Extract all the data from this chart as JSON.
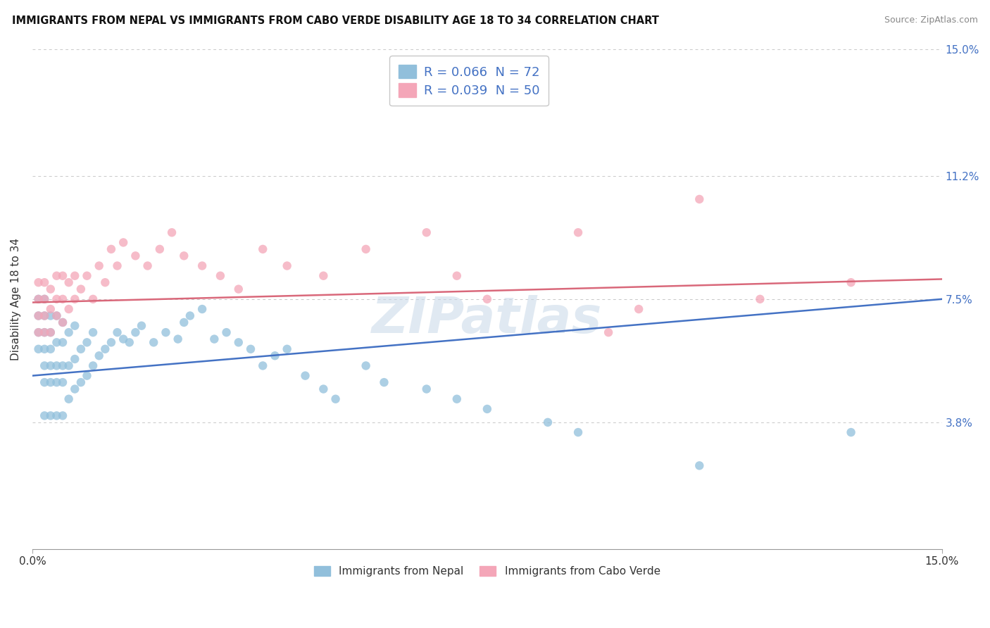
{
  "title": "IMMIGRANTS FROM NEPAL VS IMMIGRANTS FROM CABO VERDE DISABILITY AGE 18 TO 34 CORRELATION CHART",
  "source": "Source: ZipAtlas.com",
  "ylabel": "Disability Age 18 to 34",
  "x_min": 0.0,
  "x_max": 0.15,
  "y_min": 0.0,
  "y_max": 0.15,
  "y_ticks": [
    0.038,
    0.075,
    0.112,
    0.15
  ],
  "y_tick_labels": [
    "3.8%",
    "7.5%",
    "11.2%",
    "15.0%"
  ],
  "nepal_color": "#91bfdb",
  "cabo_verde_color": "#f4a6b8",
  "nepal_R": 0.066,
  "nepal_N": 72,
  "cabo_verde_R": 0.039,
  "cabo_verde_N": 50,
  "nepal_line_color": "#4472c4",
  "cabo_verde_line_color": "#d9687a",
  "legend_color": "#4472c4",
  "nepal_trend_x0": 0.0,
  "nepal_trend_y0": 0.052,
  "nepal_trend_x1": 0.15,
  "nepal_trend_y1": 0.075,
  "cabo_trend_x0": 0.0,
  "cabo_trend_y0": 0.074,
  "cabo_trend_x1": 0.15,
  "cabo_trend_y1": 0.081,
  "nepal_x": [
    0.001,
    0.001,
    0.001,
    0.001,
    0.002,
    0.002,
    0.002,
    0.002,
    0.002,
    0.002,
    0.002,
    0.003,
    0.003,
    0.003,
    0.003,
    0.003,
    0.003,
    0.004,
    0.004,
    0.004,
    0.004,
    0.004,
    0.005,
    0.005,
    0.005,
    0.005,
    0.005,
    0.006,
    0.006,
    0.006,
    0.007,
    0.007,
    0.007,
    0.008,
    0.008,
    0.009,
    0.009,
    0.01,
    0.01,
    0.011,
    0.012,
    0.013,
    0.014,
    0.015,
    0.016,
    0.017,
    0.018,
    0.02,
    0.022,
    0.024,
    0.025,
    0.026,
    0.028,
    0.03,
    0.032,
    0.034,
    0.036,
    0.038,
    0.04,
    0.042,
    0.045,
    0.048,
    0.05,
    0.055,
    0.058,
    0.065,
    0.07,
    0.075,
    0.085,
    0.09,
    0.11,
    0.135
  ],
  "nepal_y": [
    0.06,
    0.065,
    0.07,
    0.075,
    0.04,
    0.05,
    0.055,
    0.06,
    0.065,
    0.07,
    0.075,
    0.04,
    0.05,
    0.055,
    0.06,
    0.065,
    0.07,
    0.04,
    0.05,
    0.055,
    0.062,
    0.07,
    0.04,
    0.05,
    0.055,
    0.062,
    0.068,
    0.045,
    0.055,
    0.065,
    0.048,
    0.057,
    0.067,
    0.05,
    0.06,
    0.052,
    0.062,
    0.055,
    0.065,
    0.058,
    0.06,
    0.062,
    0.065,
    0.063,
    0.062,
    0.065,
    0.067,
    0.062,
    0.065,
    0.063,
    0.068,
    0.07,
    0.072,
    0.063,
    0.065,
    0.062,
    0.06,
    0.055,
    0.058,
    0.06,
    0.052,
    0.048,
    0.045,
    0.055,
    0.05,
    0.048,
    0.045,
    0.042,
    0.038,
    0.035,
    0.025,
    0.035
  ],
  "cabo_x": [
    0.001,
    0.001,
    0.001,
    0.001,
    0.002,
    0.002,
    0.002,
    0.002,
    0.003,
    0.003,
    0.003,
    0.004,
    0.004,
    0.004,
    0.005,
    0.005,
    0.005,
    0.006,
    0.006,
    0.007,
    0.007,
    0.008,
    0.009,
    0.01,
    0.011,
    0.012,
    0.013,
    0.014,
    0.015,
    0.017,
    0.019,
    0.021,
    0.023,
    0.025,
    0.028,
    0.031,
    0.034,
    0.038,
    0.042,
    0.048,
    0.055,
    0.065,
    0.07,
    0.075,
    0.09,
    0.095,
    0.1,
    0.11,
    0.12,
    0.135
  ],
  "cabo_y": [
    0.065,
    0.07,
    0.075,
    0.08,
    0.065,
    0.07,
    0.075,
    0.08,
    0.065,
    0.072,
    0.078,
    0.07,
    0.075,
    0.082,
    0.068,
    0.075,
    0.082,
    0.072,
    0.08,
    0.075,
    0.082,
    0.078,
    0.082,
    0.075,
    0.085,
    0.08,
    0.09,
    0.085,
    0.092,
    0.088,
    0.085,
    0.09,
    0.095,
    0.088,
    0.085,
    0.082,
    0.078,
    0.09,
    0.085,
    0.082,
    0.09,
    0.095,
    0.082,
    0.075,
    0.095,
    0.065,
    0.072,
    0.105,
    0.075,
    0.08
  ]
}
